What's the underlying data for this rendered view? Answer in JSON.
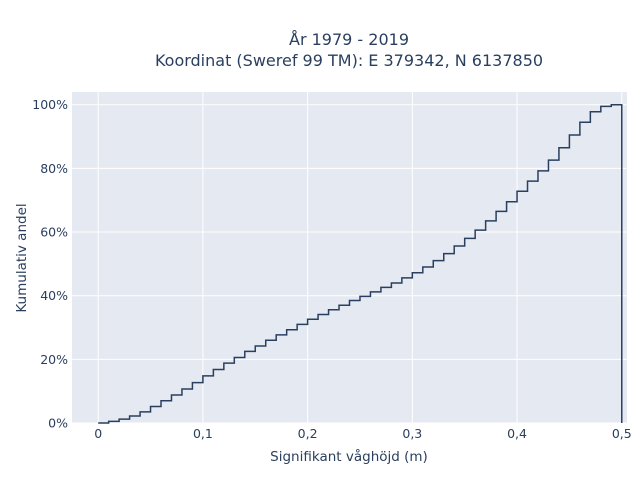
{
  "chart_data": {
    "type": "line",
    "line_shape": "step",
    "title_line1": "År 1979 - 2019",
    "title_line2": "Koordinat (Sweref 99 TM): E 379342, N 6137850",
    "xlabel": "Signifikant våghöjd (m)",
    "ylabel": "Kumulativ andel",
    "xlim": [
      -0.025,
      0.505
    ],
    "ylim": [
      0,
      1.04
    ],
    "x_ticks": [
      0,
      0.1,
      0.2,
      0.3,
      0.4,
      0.5
    ],
    "x_tick_labels": [
      "0",
      "0,1",
      "0,2",
      "0,3",
      "0,4",
      "0,5"
    ],
    "y_ticks": [
      0,
      0.2,
      0.4,
      0.6,
      0.8,
      1.0
    ],
    "y_tick_labels": [
      "0%",
      "20%",
      "40%",
      "60%",
      "80%",
      "100%"
    ],
    "grid": true,
    "background_color": "#e5e9f2",
    "line_color": "#2a3f5f",
    "series": [
      {
        "x": [
          0,
          0.01,
          0.02,
          0.03,
          0.04,
          0.05,
          0.06,
          0.07,
          0.08,
          0.09,
          0.1,
          0.11,
          0.12,
          0.13,
          0.14,
          0.15,
          0.16,
          0.17,
          0.18,
          0.19,
          0.2,
          0.21,
          0.22,
          0.23,
          0.24,
          0.25,
          0.26,
          0.27,
          0.28,
          0.29,
          0.3,
          0.31,
          0.32,
          0.33,
          0.34,
          0.35,
          0.36,
          0.37,
          0.38,
          0.39,
          0.4,
          0.41,
          0.42,
          0.43,
          0.44,
          0.45,
          0.46,
          0.47,
          0.48,
          0.49
        ],
        "y": [
          0.0,
          0.005,
          0.012,
          0.022,
          0.035,
          0.052,
          0.07,
          0.088,
          0.107,
          0.127,
          0.148,
          0.168,
          0.188,
          0.206,
          0.225,
          0.242,
          0.26,
          0.277,
          0.293,
          0.31,
          0.326,
          0.341,
          0.356,
          0.37,
          0.385,
          0.398,
          0.412,
          0.426,
          0.44,
          0.456,
          0.472,
          0.49,
          0.51,
          0.532,
          0.556,
          0.58,
          0.606,
          0.635,
          0.665,
          0.695,
          0.728,
          0.76,
          0.792,
          0.826,
          0.865,
          0.905,
          0.945,
          0.978,
          0.995,
          1.0
        ]
      }
    ]
  }
}
